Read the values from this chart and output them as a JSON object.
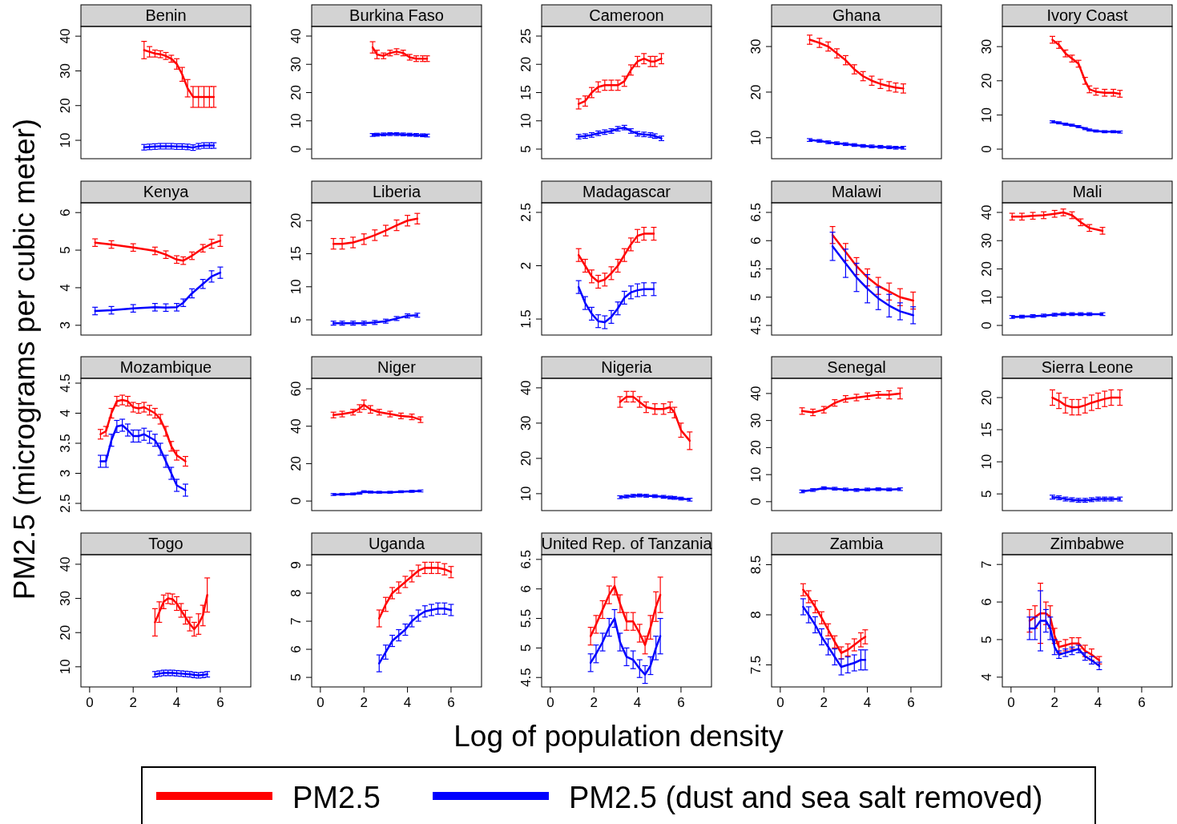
{
  "chart_data": [
    {
      "type": "line",
      "title": "Benin",
      "ylabel": "PM2.5 (micrograms per cubic meter)",
      "legend": "bottom",
      "tick_labels": "y",
      "xlim": [
        -0.4,
        7.4
      ],
      "ylim": [
        4.7,
        42.8
      ],
      "yticks": [
        10,
        20,
        30,
        40
      ],
      "x": [
        2.5,
        2.75,
        3,
        3.25,
        3.5,
        3.75,
        4,
        4.25,
        4.5,
        4.75,
        5,
        5.25,
        5.5,
        5.7
      ],
      "series": [
        {
          "name": "PM2.5",
          "color": "#ff0000",
          "values": [
            36,
            35.5,
            35,
            34.8,
            34.3,
            33.5,
            32,
            29,
            25,
            22.5,
            22.5,
            22.5,
            22.5,
            22.5
          ],
          "errors": [
            2.5,
            1.5,
            1,
            1,
            1,
            1,
            1.5,
            2,
            2.5,
            3,
            3,
            3,
            3,
            3
          ]
        },
        {
          "name": "PM2.5 (dust and sea salt removed)",
          "color": "#0000ff",
          "values": [
            8,
            8.1,
            8.2,
            8.3,
            8.3,
            8.3,
            8.2,
            8.2,
            8.1,
            7.9,
            8.3,
            8.5,
            8.5,
            8.5
          ],
          "errors": [
            0.8,
            0.8,
            0.8,
            0.8,
            0.8,
            0.8,
            0.8,
            0.8,
            0.8,
            0.8,
            0.8,
            0.8,
            0.8,
            0.8
          ]
        }
      ]
    },
    {
      "type": "line",
      "title": "Burkina Faso",
      "tick_labels": "y",
      "xlim": [
        -0.4,
        7.4
      ],
      "ylim": [
        -3.4,
        43.4
      ],
      "yticks": [
        0,
        10,
        20,
        30,
        40
      ],
      "x": [
        2.4,
        2.6,
        2.9,
        3.2,
        3.5,
        3.8,
        4.1,
        4.4,
        4.7,
        4.9
      ],
      "series": [
        {
          "color": "#ff0000",
          "values": [
            36,
            33.5,
            33,
            34,
            34.5,
            34,
            32.5,
            32,
            32,
            32
          ],
          "errors": [
            2,
            1.5,
            1,
            1,
            1,
            1,
            1,
            1,
            1,
            1
          ]
        },
        {
          "color": "#0000ff",
          "values": [
            5,
            5.1,
            5.2,
            5.3,
            5.3,
            5.2,
            5.1,
            5,
            4.9,
            4.8
          ],
          "errors": [
            0.5,
            0.5,
            0.5,
            0.5,
            0.5,
            0.5,
            0.5,
            0.5,
            0.5,
            0.5
          ]
        }
      ]
    },
    {
      "type": "line",
      "title": "Cameroon",
      "tick_labels": "y",
      "xlim": [
        -0.4,
        7.4
      ],
      "ylim": [
        3.3,
        26.7
      ],
      "yticks": [
        5,
        10,
        15,
        20,
        25
      ],
      "x": [
        1.3,
        1.6,
        1.9,
        2.2,
        2.5,
        2.8,
        3.1,
        3.4,
        3.7,
        4,
        4.3,
        4.6,
        4.8,
        5.1
      ],
      "series": [
        {
          "color": "#ff0000",
          "values": [
            13,
            13.5,
            15,
            16,
            16.3,
            16.3,
            16.3,
            17,
            19,
            20.5,
            21,
            20.5,
            20.5,
            21
          ],
          "errors": [
            0.9,
            0.9,
            0.9,
            0.9,
            0.9,
            0.9,
            0.9,
            0.9,
            0.9,
            0.9,
            0.9,
            0.9,
            0.9,
            0.9
          ]
        },
        {
          "color": "#0000ff",
          "values": [
            7.2,
            7.3,
            7.5,
            7.8,
            8,
            8.2,
            8.6,
            8.8,
            8.2,
            7.7,
            7.6,
            7.5,
            7.3,
            6.9
          ],
          "errors": [
            0.4,
            0.4,
            0.4,
            0.4,
            0.4,
            0.4,
            0.4,
            0.4,
            0.4,
            0.4,
            0.4,
            0.4,
            0.4,
            0.4
          ]
        }
      ]
    },
    {
      "type": "line",
      "title": "Ghana",
      "tick_labels": "y",
      "xlim": [
        -0.4,
        7.4
      ],
      "ylim": [
        5.4,
        34.4
      ],
      "yticks": [
        10,
        20,
        30
      ],
      "x": [
        1.35,
        1.8,
        2.2,
        2.6,
        3,
        3.4,
        3.8,
        4.2,
        4.6,
        5,
        5.3,
        5.65
      ],
      "series": [
        {
          "color": "#ff0000",
          "values": [
            31.5,
            30.8,
            30,
            28.5,
            27,
            25,
            23.5,
            22.5,
            21.8,
            21.3,
            21,
            20.8
          ],
          "errors": [
            1,
            1,
            1,
            1,
            1,
            1,
            1,
            1,
            1,
            1,
            1,
            1
          ]
        },
        {
          "color": "#0000ff",
          "values": [
            9.5,
            9.3,
            9,
            8.8,
            8.6,
            8.4,
            8.2,
            8.1,
            8,
            7.9,
            7.8,
            7.8
          ],
          "errors": [
            0.3,
            0.3,
            0.3,
            0.3,
            0.3,
            0.3,
            0.3,
            0.3,
            0.3,
            0.3,
            0.3,
            0.3
          ]
        }
      ]
    },
    {
      "type": "line",
      "title": "Ivory Coast",
      "tick_labels": "y",
      "xlim": [
        -0.4,
        7.4
      ],
      "ylim": [
        -2.8,
        35.9
      ],
      "yticks": [
        0,
        10,
        20,
        30
      ],
      "x": [
        1.9,
        2.2,
        2.5,
        2.8,
        3.1,
        3.4,
        3.6,
        3.9,
        4.3,
        4.7,
        5
      ],
      "series": [
        {
          "color": "#ff0000",
          "values": [
            32,
            30.5,
            28,
            26.5,
            25,
            20,
            17.5,
            16.8,
            16.5,
            16.5,
            16.2
          ],
          "errors": [
            1,
            1,
            1,
            1,
            1,
            1,
            1,
            1,
            1,
            1,
            1
          ]
        },
        {
          "color": "#0000ff",
          "values": [
            8,
            7.7,
            7.3,
            7,
            6.6,
            6,
            5.6,
            5.3,
            5.1,
            5.1,
            5
          ],
          "errors": [
            0.3,
            0.3,
            0.3,
            0.3,
            0.3,
            0.3,
            0.3,
            0.3,
            0.3,
            0.3,
            0.3
          ]
        }
      ]
    },
    {
      "type": "line",
      "title": "Kenya",
      "tick_labels": "y",
      "xlim": [
        -0.4,
        7.4
      ],
      "ylim": [
        2.74,
        6.26
      ],
      "yticks": [
        3,
        4,
        5,
        6
      ],
      "x": [
        0.25,
        1,
        2,
        3,
        3.5,
        4,
        4.3,
        4.7,
        5.2,
        5.6,
        6
      ],
      "series": [
        {
          "color": "#ff0000",
          "values": [
            5.2,
            5.15,
            5.07,
            4.98,
            4.88,
            4.75,
            4.72,
            4.85,
            5.05,
            5.17,
            5.25
          ],
          "errors": [
            0.1,
            0.1,
            0.1,
            0.1,
            0.1,
            0.1,
            0.1,
            0.1,
            0.1,
            0.12,
            0.15
          ]
        },
        {
          "color": "#0000ff",
          "values": [
            3.38,
            3.4,
            3.45,
            3.48,
            3.47,
            3.48,
            3.6,
            3.85,
            4.1,
            4.3,
            4.4
          ],
          "errors": [
            0.1,
            0.1,
            0.1,
            0.1,
            0.1,
            0.1,
            0.1,
            0.12,
            0.12,
            0.15,
            0.15
          ]
        }
      ]
    },
    {
      "type": "line",
      "title": "Liberia",
      "tick_labels": "y",
      "xlim": [
        -0.4,
        7.4
      ],
      "ylim": [
        2.7,
        22.7
      ],
      "yticks": [
        5,
        10,
        15,
        20
      ],
      "x": [
        0.6,
        1,
        1.5,
        2,
        2.5,
        3,
        3.5,
        4,
        4.45
      ],
      "series": [
        {
          "color": "#ff0000",
          "values": [
            16.5,
            16.5,
            16.7,
            17.2,
            17.8,
            18.5,
            19.3,
            20,
            20.3
          ],
          "errors": [
            0.8,
            0.8,
            0.8,
            0.8,
            0.8,
            0.8,
            0.8,
            0.8,
            0.8
          ]
        },
        {
          "color": "#0000ff",
          "values": [
            4.5,
            4.5,
            4.5,
            4.5,
            4.6,
            4.8,
            5.2,
            5.6,
            5.7
          ],
          "errors": [
            0.3,
            0.3,
            0.3,
            0.3,
            0.3,
            0.3,
            0.3,
            0.3,
            0.3
          ]
        }
      ]
    },
    {
      "type": "line",
      "title": "Madagascar",
      "tick_labels": "y",
      "xlim": [
        -0.4,
        7.4
      ],
      "ylim": [
        1.35,
        2.59
      ],
      "yticks": [
        1.5,
        2,
        2.5
      ],
      "x": [
        1.3,
        1.6,
        1.9,
        2.2,
        2.5,
        2.8,
        3.1,
        3.4,
        3.7,
        4,
        4.3,
        4.75
      ],
      "series": [
        {
          "color": "#ff0000",
          "values": [
            2.1,
            2,
            1.9,
            1.85,
            1.87,
            1.93,
            2,
            2.1,
            2.2,
            2.28,
            2.3,
            2.3
          ],
          "errors": [
            0.06,
            0.06,
            0.06,
            0.06,
            0.06,
            0.06,
            0.06,
            0.06,
            0.06,
            0.06,
            0.06,
            0.06
          ]
        },
        {
          "color": "#0000ff",
          "values": [
            1.8,
            1.65,
            1.55,
            1.48,
            1.47,
            1.52,
            1.6,
            1.7,
            1.75,
            1.77,
            1.78,
            1.78
          ],
          "errors": [
            0.06,
            0.06,
            0.06,
            0.06,
            0.06,
            0.06,
            0.06,
            0.06,
            0.06,
            0.06,
            0.06,
            0.06
          ]
        }
      ]
    },
    {
      "type": "line",
      "title": "Malawi",
      "tick_labels": "y",
      "xlim": [
        -0.4,
        7.4
      ],
      "ylim": [
        4.33,
        6.67
      ],
      "yticks": [
        4.5,
        5,
        5.5,
        6,
        6.5
      ],
      "x": [
        2.4,
        3,
        3.5,
        4,
        4.5,
        5,
        5.5,
        6.1
      ],
      "series": [
        {
          "color": "#ff0000",
          "values": [
            6.1,
            5.8,
            5.55,
            5.35,
            5.2,
            5.1,
            5,
            4.94
          ],
          "errors": [
            0.15,
            0.15,
            0.15,
            0.15,
            0.15,
            0.15,
            0.15,
            0.15
          ]
        },
        {
          "color": "#0000ff",
          "values": [
            5.9,
            5.6,
            5.35,
            5.15,
            4.98,
            4.85,
            4.75,
            4.68
          ],
          "errors": [
            0.25,
            0.25,
            0.25,
            0.25,
            0.2,
            0.2,
            0.15,
            0.15
          ]
        }
      ]
    },
    {
      "type": "line",
      "title": "Mali",
      "tick_labels": "y",
      "xlim": [
        -0.4,
        7.4
      ],
      "ylim": [
        -3.4,
        43.4
      ],
      "yticks": [
        0,
        10,
        20,
        30,
        40
      ],
      "x": [
        0.05,
        0.5,
        1,
        1.5,
        2,
        2.4,
        2.8,
        3.2,
        3.6,
        4.2
      ],
      "series": [
        {
          "color": "#ff0000",
          "values": [
            38.5,
            38.5,
            38.8,
            39,
            39.5,
            40,
            39,
            36.5,
            34.5,
            33.5
          ],
          "errors": [
            1.2,
            1.2,
            1.2,
            1.2,
            1.2,
            1.2,
            1.2,
            1.2,
            1.2,
            1.2
          ]
        },
        {
          "color": "#0000ff",
          "values": [
            3,
            3.1,
            3.3,
            3.5,
            3.8,
            4,
            4,
            4,
            4,
            4
          ],
          "errors": [
            0.5,
            0.5,
            0.5,
            0.5,
            0.5,
            0.5,
            0.5,
            0.5,
            0.5,
            0.5
          ]
        }
      ]
    },
    {
      "type": "line",
      "title": "Mozambique",
      "tick_labels": "y",
      "xlim": [
        -0.4,
        7.4
      ],
      "ylim": [
        2.38,
        4.58
      ],
      "yticks": [
        2.5,
        3,
        3.5,
        4,
        4.5
      ],
      "x": [
        0.5,
        0.75,
        1,
        1.25,
        1.5,
        1.75,
        2,
        2.25,
        2.5,
        2.75,
        3,
        3.25,
        3.5,
        3.75,
        4,
        4.4
      ],
      "series": [
        {
          "color": "#ff0000",
          "values": [
            3.65,
            3.7,
            4,
            4.2,
            4.22,
            4.2,
            4.1,
            4.08,
            4.1,
            4.05,
            4,
            3.9,
            3.7,
            3.45,
            3.3,
            3.2
          ],
          "errors": [
            0.08,
            0.08,
            0.08,
            0.08,
            0.08,
            0.08,
            0.08,
            0.08,
            0.08,
            0.08,
            0.08,
            0.08,
            0.08,
            0.08,
            0.08,
            0.08
          ]
        },
        {
          "color": "#0000ff",
          "values": [
            3.2,
            3.2,
            3.55,
            3.78,
            3.8,
            3.72,
            3.62,
            3.62,
            3.65,
            3.6,
            3.55,
            3.4,
            3.2,
            3,
            2.8,
            2.72
          ],
          "errors": [
            0.1,
            0.1,
            0.1,
            0.1,
            0.1,
            0.1,
            0.1,
            0.1,
            0.1,
            0.1,
            0.1,
            0.1,
            0.1,
            0.1,
            0.1,
            0.1
          ]
        }
      ]
    },
    {
      "type": "line",
      "title": "Niger",
      "tick_labels": "y",
      "xlim": [
        -0.4,
        7.4
      ],
      "ylim": [
        -5.1,
        65.6
      ],
      "yticks": [
        0,
        20,
        40,
        60
      ],
      "x": [
        0.6,
        1,
        1.5,
        1.8,
        2,
        2.3,
        2.7,
        3.2,
        3.7,
        4.2,
        4.6
      ],
      "series": [
        {
          "color": "#ff0000",
          "values": [
            46,
            46.5,
            47.5,
            49.5,
            51.5,
            49,
            47.5,
            46.5,
            45.5,
            45,
            43.5
          ],
          "errors": [
            1.5,
            1.5,
            1.5,
            2,
            2.5,
            2,
            1.5,
            1.5,
            1.5,
            1.5,
            1.5
          ]
        },
        {
          "color": "#0000ff",
          "values": [
            3.5,
            3.6,
            3.8,
            4.2,
            5,
            4.8,
            4.7,
            4.7,
            5,
            5.2,
            5.4
          ],
          "errors": [
            0.5,
            0.5,
            0.5,
            0.5,
            0.5,
            0.5,
            0.5,
            0.5,
            0.5,
            0.5,
            0.5
          ]
        }
      ]
    },
    {
      "type": "line",
      "title": "Nigeria",
      "tick_labels": "y",
      "xlim": [
        -0.4,
        7.4
      ],
      "ylim": [
        5.2,
        42.7
      ],
      "yticks": [
        10,
        20,
        30,
        40
      ],
      "x": [
        3.2,
        3.5,
        3.8,
        4.1,
        4.4,
        4.8,
        5.2,
        5.5,
        5.7,
        6,
        6.4
      ],
      "series": [
        {
          "color": "#ff0000",
          "values": [
            36,
            37.5,
            37.5,
            36,
            34.5,
            34,
            34,
            34.5,
            33,
            28,
            25
          ],
          "errors": [
            1.5,
            1.5,
            1.5,
            1.5,
            1.5,
            1.5,
            1.5,
            1.5,
            1.5,
            2,
            2.5
          ]
        },
        {
          "color": "#0000ff",
          "values": [
            9,
            9.2,
            9.4,
            9.5,
            9.4,
            9.3,
            9.1,
            8.9,
            8.8,
            8.6,
            8.3
          ],
          "errors": [
            0.4,
            0.4,
            0.4,
            0.4,
            0.4,
            0.4,
            0.4,
            0.4,
            0.4,
            0.4,
            0.4
          ]
        }
      ]
    },
    {
      "type": "line",
      "title": "Senegal",
      "tick_labels": "y",
      "xlim": [
        -0.4,
        7.4
      ],
      "ylim": [
        -3.3,
        45.6
      ],
      "yticks": [
        0,
        10,
        20,
        30,
        40
      ],
      "x": [
        1,
        1.5,
        2,
        2.5,
        3,
        3.5,
        4,
        4.5,
        5,
        5.5
      ],
      "series": [
        {
          "color": "#ff0000",
          "values": [
            33.5,
            33,
            34,
            36.5,
            38,
            38.5,
            39,
            39.5,
            39.5,
            40
          ],
          "errors": [
            1.2,
            1.2,
            1.2,
            1.2,
            1.2,
            1.2,
            1.2,
            1.2,
            1.5,
            2
          ]
        },
        {
          "color": "#0000ff",
          "values": [
            3.8,
            4.3,
            5,
            4.8,
            4.5,
            4.3,
            4.5,
            4.6,
            4.5,
            4.6
          ],
          "errors": [
            0.5,
            0.5,
            0.5,
            0.5,
            0.5,
            0.5,
            0.5,
            0.5,
            0.5,
            0.5
          ]
        }
      ]
    },
    {
      "type": "line",
      "title": "Sierra Leone",
      "tick_labels": "y",
      "xlim": [
        -0.4,
        7.4
      ],
      "ylim": [
        2.4,
        23
      ],
      "yticks": [
        5,
        10,
        15,
        20
      ],
      "x": [
        1.9,
        2.2,
        2.5,
        2.8,
        3.1,
        3.4,
        3.7,
        4,
        4.3,
        4.6,
        5
      ],
      "series": [
        {
          "color": "#ff0000",
          "values": [
            20,
            19.5,
            18.8,
            18.5,
            18.5,
            18.8,
            19.2,
            19.5,
            19.8,
            20,
            20
          ],
          "errors": [
            1.2,
            1.2,
            1.2,
            1.2,
            1.2,
            1.2,
            1.2,
            1.2,
            1.2,
            1.2,
            1.2
          ]
        },
        {
          "color": "#0000ff",
          "values": [
            4.5,
            4.4,
            4.2,
            4.1,
            4,
            4,
            4.1,
            4.2,
            4.2,
            4.2,
            4.2
          ],
          "errors": [
            0.3,
            0.3,
            0.3,
            0.3,
            0.3,
            0.3,
            0.3,
            0.3,
            0.3,
            0.3,
            0.3
          ]
        }
      ]
    },
    {
      "type": "line",
      "title": "Togo",
      "xlim": [
        -0.4,
        7.4
      ],
      "xticks": [
        0,
        2,
        4,
        6
      ],
      "ylim": [
        4.1,
        42.8
      ],
      "yticks": [
        10,
        20,
        30,
        40
      ],
      "x": [
        3,
        3.2,
        3.4,
        3.6,
        3.8,
        4,
        4.2,
        4.4,
        4.6,
        4.8,
        5,
        5.2,
        5.4
      ],
      "series": [
        {
          "color": "#ff0000",
          "values": [
            23,
            26,
            29,
            30,
            29.8,
            28.5,
            26.5,
            24.5,
            22.5,
            21,
            22.5,
            25,
            31
          ],
          "errors": [
            4,
            3,
            2,
            1.5,
            1.5,
            2,
            2,
            2,
            2,
            2,
            3,
            3,
            5
          ]
        },
        {
          "color": "#0000ff",
          "values": [
            7.8,
            8,
            8.2,
            8.2,
            8.2,
            8.1,
            8,
            7.9,
            7.8,
            7.6,
            7.5,
            7.6,
            7.8
          ],
          "errors": [
            0.8,
            0.8,
            0.8,
            0.8,
            0.8,
            0.8,
            0.8,
            0.8,
            0.8,
            0.8,
            0.8,
            0.8,
            0.8
          ]
        }
      ]
    },
    {
      "type": "line",
      "title": "Uganda",
      "xlim": [
        -0.4,
        7.4
      ],
      "xticks": [
        0,
        2,
        4,
        6
      ],
      "ylim": [
        4.66,
        9.37
      ],
      "yticks": [
        5,
        6,
        7,
        8,
        9
      ],
      "x": [
        2.7,
        3,
        3.3,
        3.6,
        3.9,
        4.2,
        4.5,
        4.8,
        5.1,
        5.4,
        5.7,
        6
      ],
      "series": [
        {
          "color": "#ff0000",
          "values": [
            7.1,
            7.6,
            8,
            8.2,
            8.4,
            8.6,
            8.8,
            8.9,
            8.9,
            8.9,
            8.85,
            8.75
          ],
          "errors": [
            0.3,
            0.25,
            0.2,
            0.2,
            0.2,
            0.2,
            0.2,
            0.2,
            0.2,
            0.2,
            0.2,
            0.2
          ]
        },
        {
          "color": "#0000ff",
          "values": [
            5.5,
            5.9,
            6.3,
            6.5,
            6.7,
            7,
            7.2,
            7.35,
            7.4,
            7.45,
            7.45,
            7.4
          ],
          "errors": [
            0.3,
            0.25,
            0.2,
            0.2,
            0.2,
            0.2,
            0.2,
            0.2,
            0.2,
            0.2,
            0.2,
            0.2
          ]
        }
      ]
    },
    {
      "type": "line",
      "title": "United Rep. of Tanzania",
      "xlabel": "Log of population density",
      "xlim": [
        -0.4,
        7.4
      ],
      "xticks": [
        0,
        2,
        4,
        6
      ],
      "ylim": [
        4.34,
        6.58
      ],
      "yticks": [
        4.5,
        5,
        5.5,
        6,
        6.5
      ],
      "x": [
        1.85,
        2.1,
        2.4,
        2.7,
        2.95,
        3.2,
        3.5,
        3.8,
        4.1,
        4.35,
        4.6,
        4.85,
        5.05
      ],
      "series": [
        {
          "color": "#ff0000",
          "values": [
            5.2,
            5.4,
            5.65,
            5.9,
            6.05,
            5.75,
            5.45,
            5.45,
            5.25,
            5.05,
            5.35,
            5.7,
            5.9
          ],
          "errors": [
            0.15,
            0.15,
            0.15,
            0.15,
            0.15,
            0.15,
            0.15,
            0.15,
            0.15,
            0.15,
            0.2,
            0.25,
            0.3
          ]
        },
        {
          "color": "#0000ff",
          "values": [
            4.75,
            4.9,
            5.1,
            5.35,
            5.5,
            5.1,
            4.85,
            4.8,
            4.65,
            4.55,
            4.7,
            5,
            5.2
          ],
          "errors": [
            0.15,
            0.15,
            0.15,
            0.15,
            0.15,
            0.15,
            0.15,
            0.15,
            0.15,
            0.15,
            0.15,
            0.2,
            0.3
          ]
        }
      ]
    },
    {
      "type": "line",
      "title": "Zambia",
      "xlim": [
        -0.4,
        7.4
      ],
      "xticks": [
        0,
        2,
        4,
        6
      ],
      "ylim": [
        7.28,
        8.6
      ],
      "yticks": [
        7.5,
        8,
        8.5
      ],
      "x": [
        1.05,
        1.3,
        1.6,
        1.9,
        2.2,
        2.5,
        2.8,
        3.1,
        3.4,
        3.7,
        3.9
      ],
      "series": [
        {
          "color": "#ff0000",
          "values": [
            8.25,
            8.18,
            8.08,
            7.97,
            7.85,
            7.73,
            7.62,
            7.65,
            7.7,
            7.75,
            7.78
          ],
          "errors": [
            0.06,
            0.06,
            0.06,
            0.06,
            0.06,
            0.06,
            0.06,
            0.06,
            0.06,
            0.07,
            0.07
          ]
        },
        {
          "color": "#0000ff",
          "values": [
            8.08,
            8,
            7.9,
            7.78,
            7.68,
            7.58,
            7.48,
            7.5,
            7.52,
            7.55,
            7.55
          ],
          "errors": [
            0.08,
            0.08,
            0.08,
            0.08,
            0.08,
            0.08,
            0.08,
            0.08,
            0.08,
            0.1,
            0.1
          ]
        }
      ]
    },
    {
      "type": "line",
      "title": "Zimbabwe",
      "xlim": [
        -0.4,
        7.4
      ],
      "xticks": [
        0,
        2,
        4,
        6
      ],
      "ylim": [
        3.74,
        7.26
      ],
      "yticks": [
        4,
        5,
        6,
        7
      ],
      "x": [
        0.85,
        1.1,
        1.35,
        1.6,
        1.8,
        2,
        2.2,
        2.5,
        2.8,
        3.1,
        3.4,
        3.7,
        4.05
      ],
      "series": [
        {
          "color": "#ff0000",
          "values": [
            5.5,
            5.6,
            5.7,
            5.7,
            5.6,
            5.1,
            4.8,
            4.85,
            4.9,
            4.9,
            4.7,
            4.6,
            4.45
          ],
          "errors": [
            0.3,
            0.3,
            0.8,
            0.3,
            0.3,
            0.2,
            0.15,
            0.15,
            0.15,
            0.15,
            0.15,
            0.15,
            0.1
          ]
        },
        {
          "color": "#0000ff",
          "values": [
            5.3,
            5.3,
            5.5,
            5.5,
            5.3,
            4.8,
            4.6,
            4.65,
            4.7,
            4.75,
            4.55,
            4.45,
            4.3
          ],
          "errors": [
            0.3,
            0.3,
            0.8,
            0.3,
            0.3,
            0.2,
            0.1,
            0.1,
            0.1,
            0.1,
            0.1,
            0.1,
            0.1
          ]
        }
      ]
    }
  ]
}
